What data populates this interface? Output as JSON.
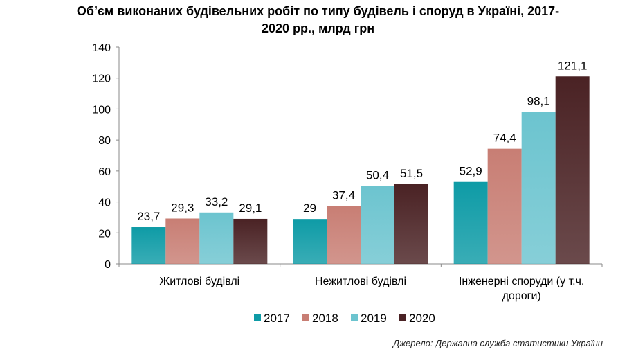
{
  "chart_data": {
    "type": "bar",
    "title_line1": "Об’єм виконаних будівельних робіт по типу будівель і споруд в Україні, 2017-",
    "title_line2": "2020 рр., млрд грн",
    "categories": [
      [
        "Житлові будівлі"
      ],
      [
        "Нежитлові будівлі"
      ],
      [
        "Інженерні споруди (у т.ч.",
        "дороги)"
      ]
    ],
    "series": [
      {
        "name": "2017",
        "values": [
          23.7,
          29,
          52.9
        ],
        "labels": [
          "23,7",
          "29",
          "52,9"
        ],
        "color": "#0E9BA6"
      },
      {
        "name": "2018",
        "values": [
          29.3,
          37.4,
          74.4
        ],
        "labels": [
          "29,3",
          "37,4",
          "74,4"
        ],
        "color": "#C87E74"
      },
      {
        "name": "2019",
        "values": [
          33.2,
          50.4,
          98.1
        ],
        "labels": [
          "33,2",
          "50,4",
          "98,1"
        ],
        "color": "#6CC4CF"
      },
      {
        "name": "2020",
        "values": [
          29.1,
          51.5,
          121.1
        ],
        "labels": [
          "29,1",
          "51,5",
          "121,1"
        ],
        "color": "#4A2224"
      }
    ],
    "yticks": [
      "0",
      "20",
      "40",
      "60",
      "80",
      "100",
      "120",
      "140"
    ],
    "ylim": [
      0,
      140
    ],
    "xlabel": "",
    "ylabel": "",
    "grid": false,
    "legend_position": "bottom"
  },
  "source": "Джерело: Державна служба статистики України"
}
